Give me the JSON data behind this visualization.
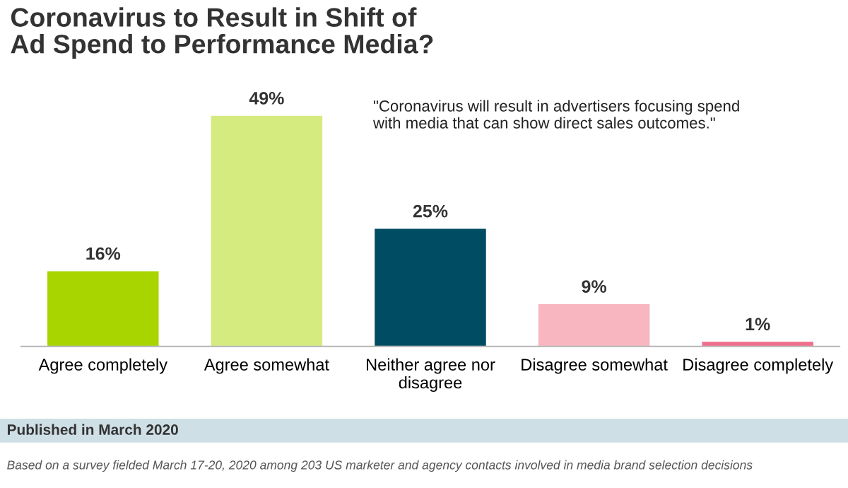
{
  "chart_data": {
    "type": "bar",
    "title": "Coronavirus to Result in Shift of\nAd Spend to Performance Media?",
    "categories": [
      "Agree completely",
      "Agree somewhat",
      "Neither agree nor\ndisagree",
      "Disagree somewhat",
      "Disagree completely"
    ],
    "values": [
      16,
      49,
      25,
      9,
      1
    ],
    "colors": [
      "#a8d500",
      "#d5eb80",
      "#004c63",
      "#f8b6c1",
      "#ef6f8b"
    ],
    "value_labels": [
      "16%",
      "49%",
      "25%",
      "9%",
      "1%"
    ],
    "annotations": [
      "\"Coronavirus will result in advertisers focusing spend\nwith media that can show direct sales outcomes.\"",
      "Published in March 2020",
      "Based on a survey fielded March 17-20, 2020 among 203 US marketer and agency contacts involved in media brand selection decisions"
    ],
    "grid": false,
    "legend": false
  }
}
